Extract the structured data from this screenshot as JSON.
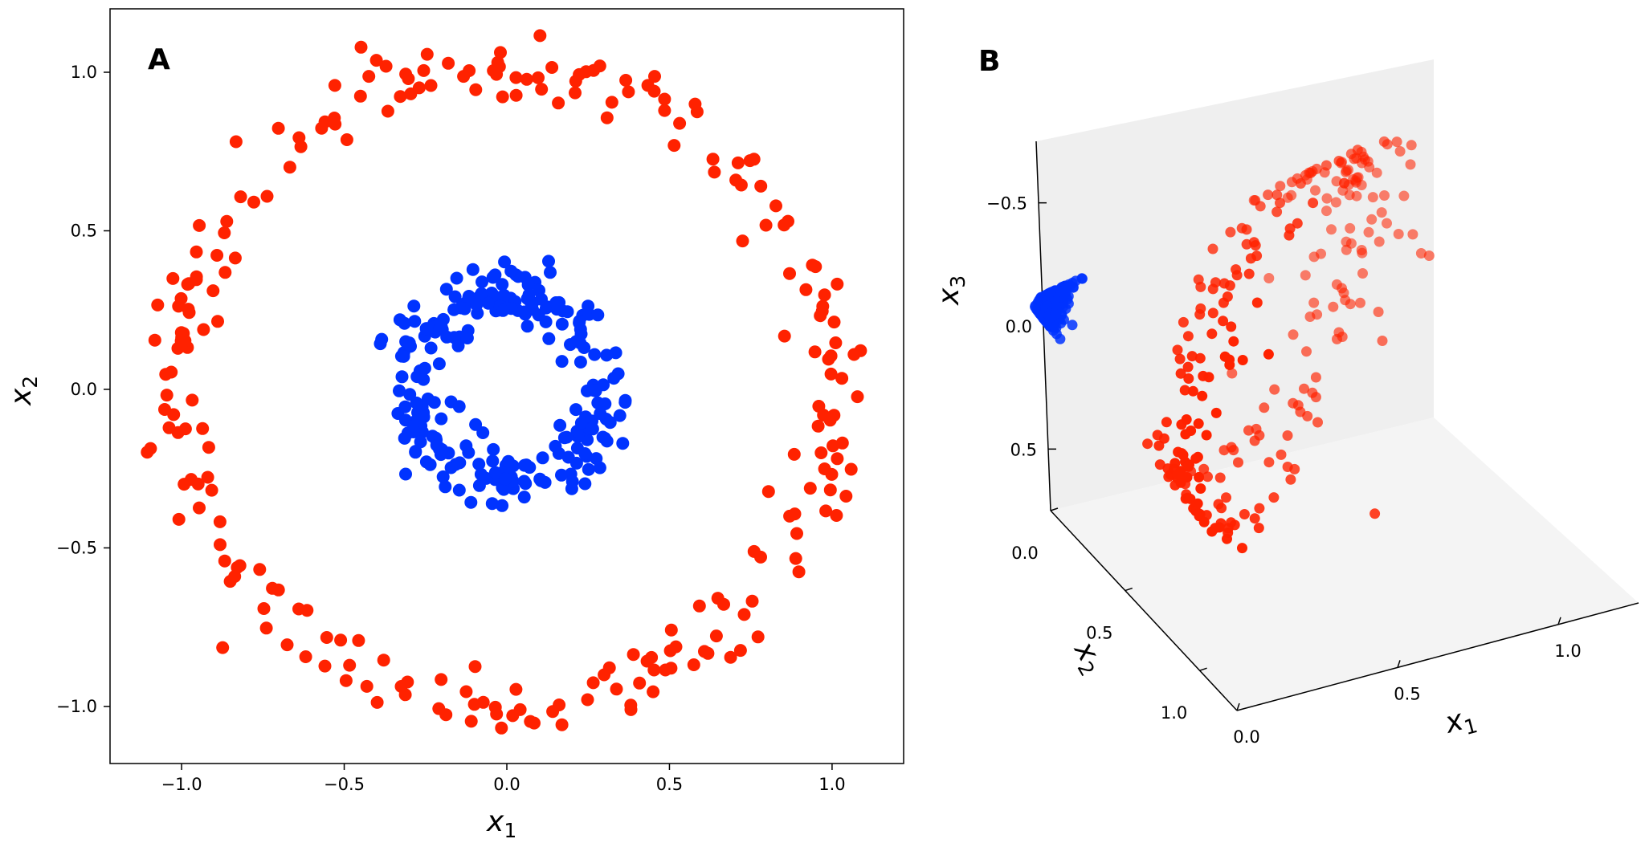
{
  "chart_data": [
    {
      "panel": "A",
      "type": "scatter",
      "xlabel": "x",
      "xlabel_sub": "1",
      "ylabel": "x",
      "ylabel_sub": "2",
      "xlim": [
        -1.22,
        1.22
      ],
      "ylim": [
        -1.18,
        1.2
      ],
      "xticks": [
        -1.0,
        -0.5,
        0.0,
        0.5,
        1.0
      ],
      "xtick_labels": [
        "−1.0",
        "−0.5",
        "0.0",
        "0.5",
        "1.0"
      ],
      "yticks": [
        -1.0,
        -0.5,
        0.0,
        0.5,
        1.0
      ],
      "ytick_labels": [
        "−1.0",
        "−0.5",
        "0.0",
        "0.5",
        "1.0"
      ],
      "grid": false,
      "series": [
        {
          "color": "#ff2200",
          "ring": {
            "center": [
              0,
              0
            ],
            "radius": 1.0,
            "noise": 0.05,
            "n": 250
          }
        },
        {
          "color": "#0033ff",
          "ring": {
            "center": [
              0,
              0
            ],
            "radius": 0.3,
            "noise": 0.05,
            "n": 250
          }
        }
      ]
    },
    {
      "panel": "B",
      "type": "scatter3d",
      "xlabel": "x",
      "xlabel_sub": "1",
      "ylabel": "x",
      "ylabel_sub": "2",
      "zlabel": "x",
      "zlabel_sub": "3",
      "x_ticks": [
        "0.0",
        "0.5",
        "1.0"
      ],
      "y_ticks": [
        "0.0",
        "0.5",
        "1.0"
      ],
      "z_ticks": [
        "−0.5",
        "0.0",
        "0.5"
      ],
      "series": [
        {
          "color": "#ff2200",
          "description_values": {
            "x": "x1^2 of outer ring",
            "y": "x2^2 of outer ring",
            "z": "x1*x2 of outer ring"
          }
        },
        {
          "color": "#0033ff",
          "description_values": {
            "x": "x1^2 of inner ring",
            "y": "x2^2 of inner ring",
            "z": "x1*x2 of inner ring"
          }
        }
      ]
    }
  ],
  "colors": {
    "red": "#ff2200",
    "blue": "#0033ff",
    "pane": "#efefef"
  }
}
